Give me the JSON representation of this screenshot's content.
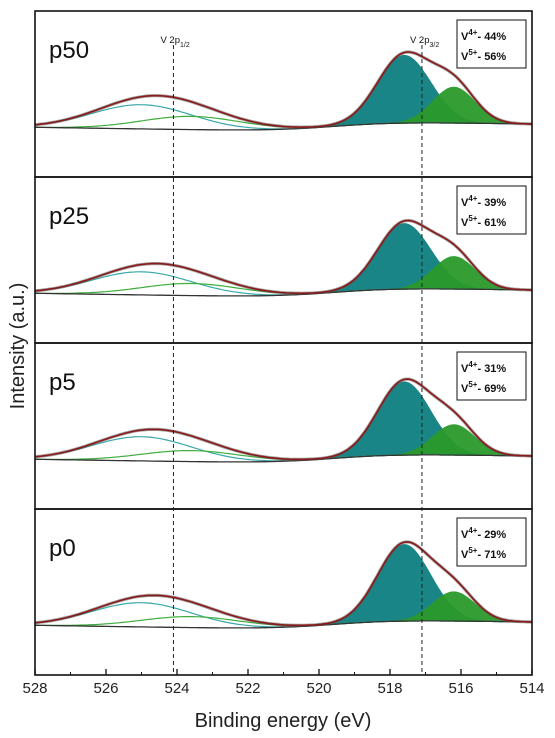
{
  "chart_data": {
    "type": "line",
    "xlabel": "Binding energy (eV)",
    "ylabel": "Intensity (a.u.)",
    "xlim": [
      528,
      514
    ],
    "x_reversed": true,
    "xticks": [
      528,
      526,
      524,
      522,
      520,
      518,
      516,
      514
    ],
    "reference_lines": [
      {
        "x": 524.1,
        "label_main": "V 2p",
        "label_sub": "1/2"
      },
      {
        "x": 517.1,
        "label_main": "V 2p",
        "label_sub": "3/2"
      }
    ],
    "component_colors": {
      "envelope": "#8b1a1a",
      "measured": "#555555",
      "background": "#333333",
      "v4_component": "#0e7e80",
      "v5_component": "#2a9a2a",
      "satellite_line": "#3aa8a8",
      "satellite_line_2": "#3fae3f"
    },
    "panels": [
      {
        "label": "p50",
        "v4": {
          "ion": "V",
          "charge": "4+",
          "text": "- 44%"
        },
        "v5": {
          "ion": "V",
          "charge": "5+",
          "text": "- 56%"
        },
        "peaks": [
          {
            "component": "V4+ 2p3/2",
            "center": 517.6,
            "height": 0.62,
            "width": 0.75
          },
          {
            "component": "V5+ 2p3/2",
            "center": 516.2,
            "height": 0.33,
            "width": 0.6
          },
          {
            "component": "V4+ 2p1/2",
            "center": 525.0,
            "height": 0.22,
            "width": 1.4
          },
          {
            "component": "V5+ 2p1/2",
            "center": 523.6,
            "height": 0.12,
            "width": 1.4
          }
        ]
      },
      {
        "label": "p25",
        "v4": {
          "ion": "V",
          "charge": "4+",
          "text": "- 39%"
        },
        "v5": {
          "ion": "V",
          "charge": "5+",
          "text": "- 61%"
        },
        "peaks": [
          {
            "component": "V4+ 2p3/2",
            "center": 517.6,
            "height": 0.6,
            "width": 0.75
          },
          {
            "component": "V5+ 2p3/2",
            "center": 516.2,
            "height": 0.3,
            "width": 0.6
          },
          {
            "component": "V4+ 2p1/2",
            "center": 525.0,
            "height": 0.21,
            "width": 1.4
          },
          {
            "component": "V5+ 2p1/2",
            "center": 523.6,
            "height": 0.11,
            "width": 1.4
          }
        ]
      },
      {
        "label": "p5",
        "v4": {
          "ion": "V",
          "charge": "4+",
          "text": "- 31%"
        },
        "v5": {
          "ion": "V",
          "charge": "5+",
          "text": "- 69%"
        },
        "peaks": [
          {
            "component": "V4+ 2p3/2",
            "center": 517.6,
            "height": 0.67,
            "width": 0.75
          },
          {
            "component": "V5+ 2p3/2",
            "center": 516.2,
            "height": 0.28,
            "width": 0.6
          },
          {
            "component": "V4+ 2p1/2",
            "center": 525.0,
            "height": 0.22,
            "width": 1.4
          },
          {
            "component": "V5+ 2p1/2",
            "center": 523.6,
            "height": 0.1,
            "width": 1.4
          }
        ]
      },
      {
        "label": "p0",
        "v4": {
          "ion": "V",
          "charge": "4+",
          "text": "- 29%"
        },
        "v5": {
          "ion": "V",
          "charge": "5+",
          "text": "- 71%"
        },
        "peaks": [
          {
            "component": "V4+ 2p3/2",
            "center": 517.6,
            "height": 0.7,
            "width": 0.75
          },
          {
            "component": "V5+ 2p3/2",
            "center": 516.2,
            "height": 0.27,
            "width": 0.6
          },
          {
            "component": "V4+ 2p1/2",
            "center": 525.0,
            "height": 0.22,
            "width": 1.4
          },
          {
            "component": "V5+ 2p1/2",
            "center": 523.6,
            "height": 0.1,
            "width": 1.4
          }
        ]
      }
    ]
  }
}
